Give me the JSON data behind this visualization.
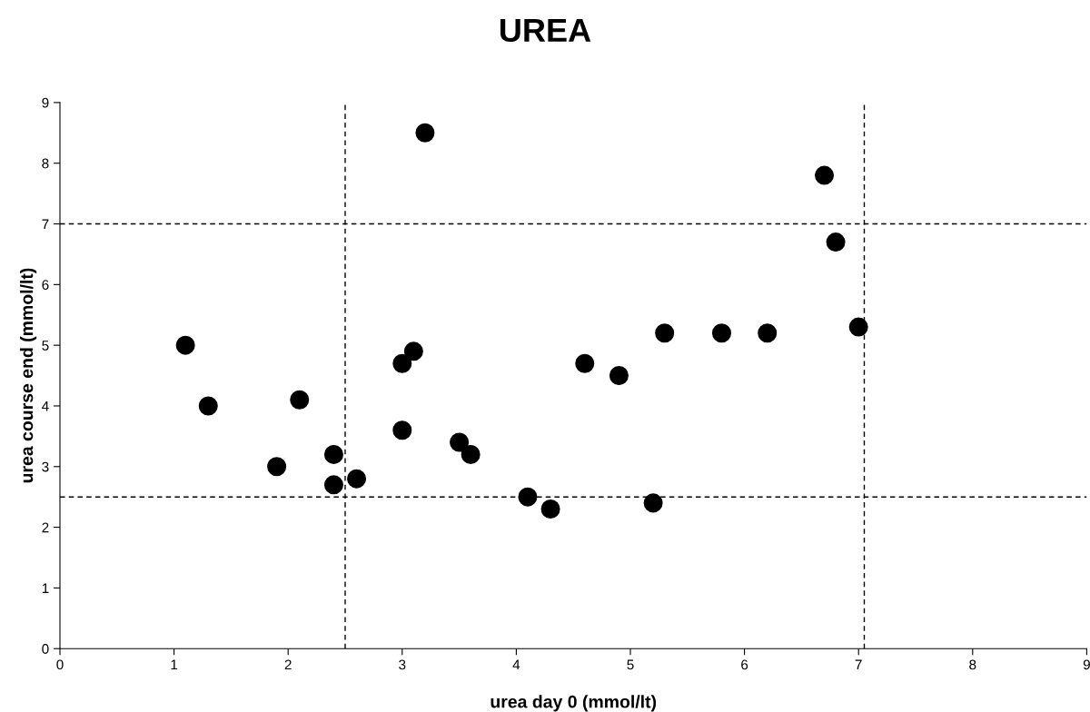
{
  "chart_data": {
    "type": "scatter",
    "title": "UREA",
    "xlabel": "urea day 0 (mmol/lt)",
    "ylabel": "urea course end (mmol/lt)",
    "x": [
      1.1,
      1.3,
      1.9,
      2.1,
      2.4,
      2.4,
      2.6,
      3.0,
      3.1,
      3.0,
      3.2,
      3.5,
      3.6,
      4.1,
      4.3,
      4.6,
      4.9,
      5.2,
      5.3,
      5.8,
      6.2,
      6.7,
      6.8,
      7.0
    ],
    "series": [
      {
        "color": "#000000",
        "values": [
          5.0,
          4.0,
          3.0,
          4.1,
          3.2,
          2.7,
          2.8,
          4.7,
          4.9,
          3.6,
          8.5,
          3.4,
          3.2,
          2.5,
          2.3,
          4.7,
          4.5,
          2.4,
          5.2,
          5.2,
          5.2,
          7.8,
          6.7,
          5.3
        ]
      }
    ],
    "marker": "circle",
    "grid": false,
    "legend": false,
    "xlim": [
      0,
      9
    ],
    "xticks": [
      0,
      1,
      2,
      3,
      4,
      5,
      6,
      7,
      8,
      9
    ],
    "ylim": [
      0,
      9
    ],
    "yticks": [
      0,
      1,
      2,
      3,
      4,
      5,
      6,
      7,
      8,
      9
    ],
    "ref_lines": [
      {
        "axis": "x",
        "value": 2.5,
        "color": "#000000",
        "line_style": "dashed"
      },
      {
        "axis": "x",
        "value": 7.05,
        "color": "#000000",
        "line_style": "dashed"
      },
      {
        "axis": "y",
        "value": 7.0,
        "color": "#000000",
        "line_style": "dashed"
      },
      {
        "axis": "y",
        "value": 2.5,
        "color": "#000000",
        "line_style": "dashed"
      }
    ]
  }
}
